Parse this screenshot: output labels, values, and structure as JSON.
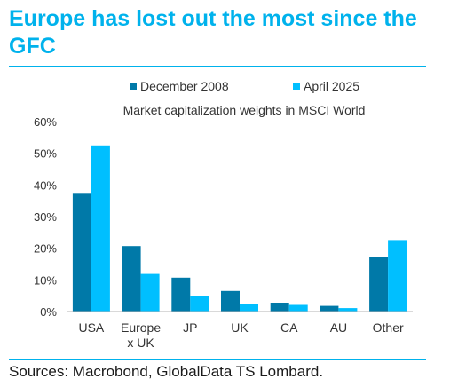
{
  "header": {
    "title": "Europe has lost out the most since the GFC"
  },
  "footer": {
    "source": "Sources: Macrobond, GlobalData TS Lombard."
  },
  "colors": {
    "title": "#00b2ec",
    "rule": "#00b2ec"
  },
  "chart_data": {
    "type": "bar",
    "subtitle": "Market capitalization weights in MSCI World",
    "categories": [
      "USA",
      "Europe x UK",
      "JP",
      "UK",
      "CA",
      "AU",
      "Other"
    ],
    "category_lines": [
      [
        "USA"
      ],
      [
        "Europe",
        "x UK"
      ],
      [
        "JP"
      ],
      [
        "UK"
      ],
      [
        "CA"
      ],
      [
        "AU"
      ],
      [
        "Other"
      ]
    ],
    "series": [
      {
        "name": "December 2008",
        "color": "#0079a8",
        "values": [
          37.5,
          20.7,
          10.7,
          6.5,
          2.8,
          1.8,
          17.1
        ]
      },
      {
        "name": "April 2025",
        "color": "#00bfff",
        "values": [
          52.5,
          11.9,
          4.8,
          2.5,
          2.1,
          1.1,
          22.6
        ]
      }
    ],
    "ylim": [
      0,
      60
    ],
    "yticks": [
      0,
      10,
      20,
      30,
      40,
      50,
      60
    ],
    "ytick_labels": [
      "0%",
      "10%",
      "20%",
      "30%",
      "40%",
      "50%",
      "60%"
    ],
    "grid": false,
    "legend": "top-center"
  }
}
